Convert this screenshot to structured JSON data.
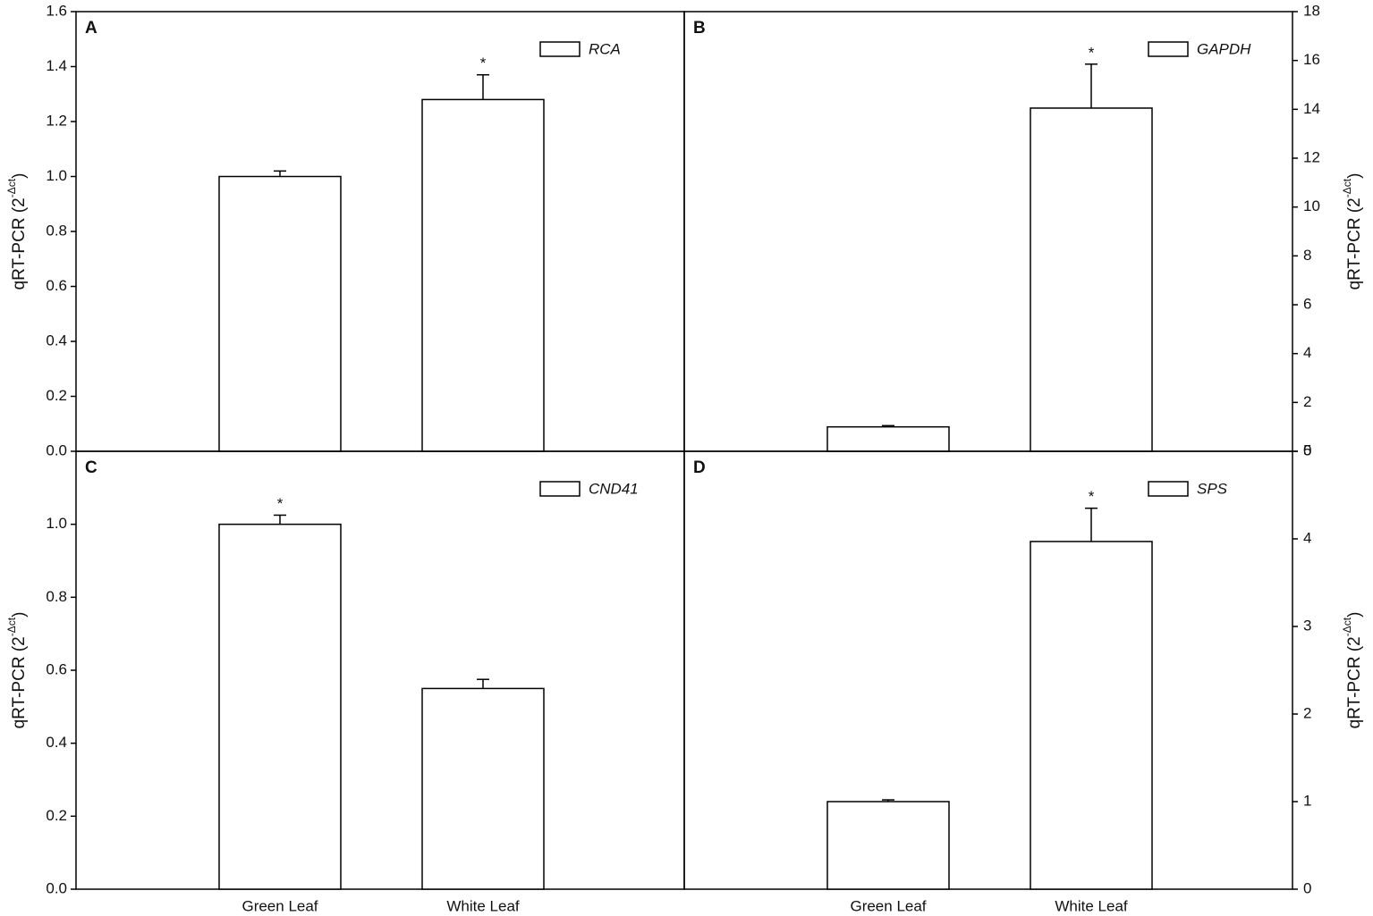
{
  "chart_data": [
    {
      "type": "bar",
      "label": "A",
      "categories": [
        null,
        null
      ],
      "series": [
        {
          "name": "RCA",
          "color": "#ffffff",
          "values": [
            1.0,
            1.28
          ],
          "errors": [
            0.02,
            0.09
          ]
        }
      ],
      "annotations": [
        {
          "text": "*",
          "x": 1
        }
      ],
      "ylim": [
        0,
        1.6
      ],
      "yticks": [
        {
          "value": 0,
          "label": "0.0"
        },
        0.2,
        0.4,
        0.6,
        0.8,
        {
          "value": 1,
          "label": "1.0"
        },
        1.2,
        1.4,
        1.6
      ],
      "yaxis_side": "left",
      "ylabel": [
        "qRT-PCR (2",
        "-Δct",
        ")"
      ]
    },
    {
      "type": "bar",
      "label": "B",
      "categories": [
        null,
        null
      ],
      "series": [
        {
          "name": "GAPDH",
          "color": "#ffffff",
          "values": [
            1.0,
            14.05
          ],
          "errors": [
            0.05,
            1.8
          ]
        }
      ],
      "annotations": [
        {
          "text": "*",
          "x": 1
        }
      ],
      "ylim": [
        0,
        18
      ],
      "yticks": [
        0,
        2,
        4,
        6,
        8,
        10,
        12,
        14,
        16,
        18
      ],
      "yaxis_side": "right",
      "ylabel": [
        "qRT-PCR (2",
        "-Δct",
        ")"
      ]
    },
    {
      "type": "bar",
      "label": "C",
      "categories": [
        "Green Leaf",
        "White Leaf"
      ],
      "series": [
        {
          "name": "CND41",
          "color": "#ffffff",
          "values": [
            1.0,
            0.55
          ],
          "errors": [
            0.025,
            0.025
          ]
        }
      ],
      "annotations": [
        {
          "text": "*",
          "x": 0
        }
      ],
      "ylim": [
        0,
        1.2
      ],
      "yticks": [
        {
          "value": 0,
          "label": "0.0"
        },
        0.2,
        0.4,
        0.6,
        0.8,
        {
          "value": 1,
          "label": "1.0"
        }
      ],
      "yaxis_side": "left",
      "ylabel": [
        "qRT-PCR (2",
        "-Δct",
        ")"
      ]
    },
    {
      "type": "bar",
      "label": "D",
      "categories": [
        "Green Leaf",
        "White Leaf"
      ],
      "series": [
        {
          "name": "SPS",
          "color": "#ffffff",
          "values": [
            1.0,
            3.97
          ],
          "errors": [
            0.02,
            0.38
          ]
        }
      ],
      "annotations": [
        {
          "text": "*",
          "x": 1
        }
      ],
      "ylim": [
        0,
        5
      ],
      "yticks": [
        0,
        1,
        2,
        3,
        4,
        5
      ],
      "yaxis_side": "right",
      "ylabel": [
        "qRT-PCR (2",
        "-Δct",
        ")"
      ]
    }
  ]
}
